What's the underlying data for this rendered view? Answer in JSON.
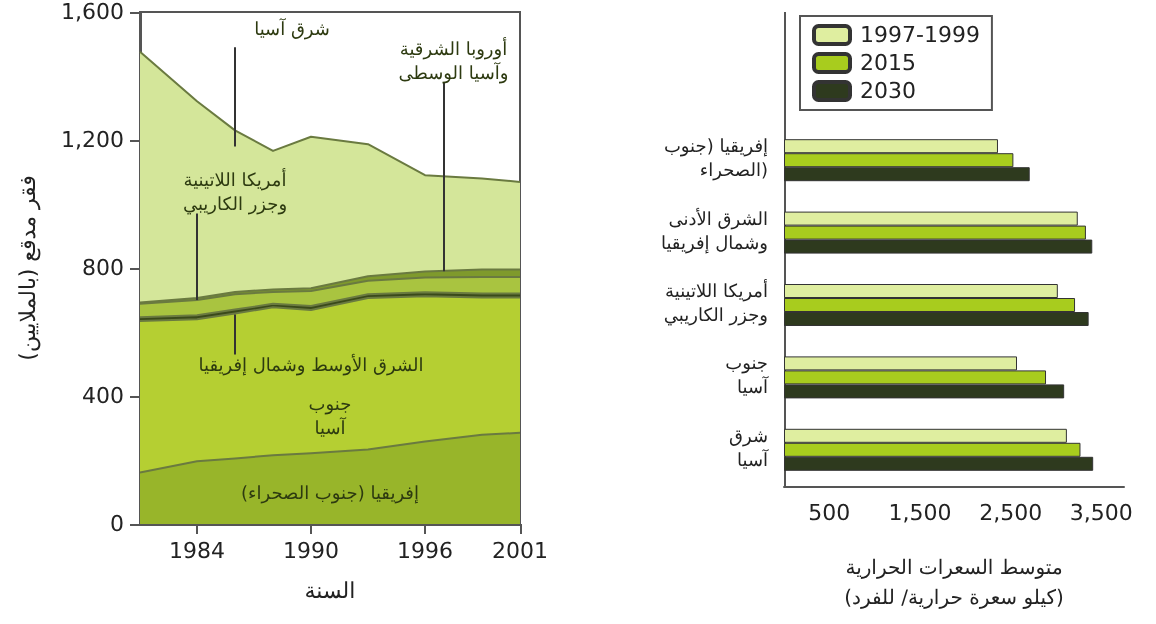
{
  "chart_data": [
    {
      "type": "area",
      "stacked": true,
      "xlabel": "السنة",
      "ylabel": "فقر مدقع (بالملايين)",
      "x": [
        1981,
        1984,
        1986,
        1988,
        1990,
        1993,
        1996,
        1999,
        2001
      ],
      "xlim": [
        1981,
        2001
      ],
      "xticks": [
        1984,
        1990,
        1996,
        2001
      ],
      "ylim": [
        0,
        1600
      ],
      "yticks": [
        {
          "value": 0,
          "label": "0"
        },
        {
          "value": 400,
          "label": "400"
        },
        {
          "value": 800,
          "label": "800"
        },
        {
          "value": 1200,
          "label": "1,200"
        },
        {
          "value": 1600,
          "label": "1,600"
        }
      ],
      "grid": false,
      "legend": false,
      "series": [
        {
          "name": "إفريقيا (جنوب الصحراء)",
          "color": "#98b52a",
          "values": [
            161,
            196,
            205,
            215,
            221,
            233,
            258,
            279,
            285
          ]
        },
        {
          "name": "جنوب آسيا",
          "color": "#b5cf32",
          "values": [
            473,
            444,
            453,
            462,
            448,
            473,
            454,
            429,
            423
          ]
        },
        {
          "name": "الشرق الأوسط وشمال إفريقيا",
          "color": "#3a4a1a",
          "values": [
            12,
            12,
            12,
            11,
            12,
            12,
            12,
            12,
            12
          ]
        },
        {
          "name": "أمريكا اللاتينية وجزر الكاريبي",
          "color": "#a9c440",
          "values": [
            42,
            48,
            48,
            37,
            47,
            42,
            46,
            52,
            52
          ]
        },
        {
          "name": "أوروبا الشرقية وآسيا الوسطى",
          "color": "#7f9a2c",
          "values": [
            4,
            6,
            7,
            8,
            9,
            14,
            19,
            23,
            23
          ]
        },
        {
          "name": "شرق آسيا",
          "color": "#d4e69a",
          "values": [
            784,
            615,
            505,
            433,
            473,
            413,
            301,
            285,
            274
          ]
        }
      ]
    },
    {
      "type": "bar",
      "orientation": "horizontal",
      "xlabel": "متوسط السعرات الحرارية (كيلو سعرة حرارية/ للفرد)",
      "categories": [
        "إفريقيا (جنوب الصحراء)",
        "الشرق الأدنى وشمال إفريقيا",
        "أمريكا اللاتينية وجزر الكاريبي",
        "جنوب آسيا",
        "شرق آسيا"
      ],
      "xlim": [
        0,
        3750
      ],
      "xticks": [
        {
          "value": 500,
          "label": "500"
        },
        {
          "value": 1500,
          "label": "1,500"
        },
        {
          "value": 2500,
          "label": "2,500"
        },
        {
          "value": 3500,
          "label": "3,500"
        }
      ],
      "grid": false,
      "legend": "top left",
      "series": [
        {
          "name": "1997-1999",
          "color": "#dfeea0",
          "values": [
            2360,
            3240,
            3020,
            2570,
            3120
          ]
        },
        {
          "name": "2015",
          "color": "#a8cc1e",
          "values": [
            2530,
            3330,
            3210,
            2890,
            3270
          ]
        },
        {
          "name": "2030",
          "color": "#2e3a1e",
          "values": [
            2710,
            3400,
            3360,
            3090,
            3410
          ]
        }
      ]
    }
  ]
}
